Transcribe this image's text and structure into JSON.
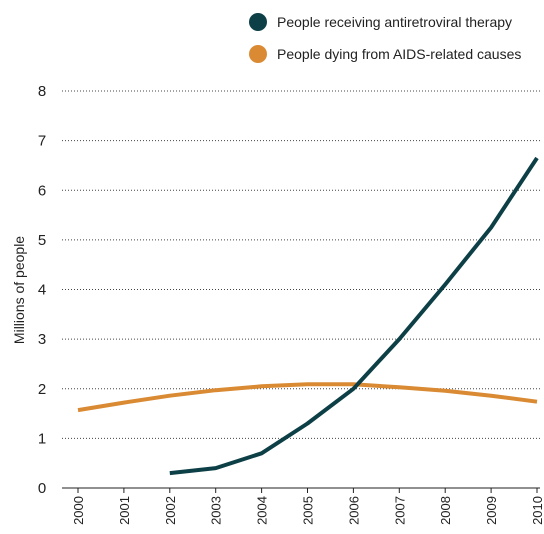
{
  "chart_data": {
    "type": "line",
    "title": "",
    "xlabel": "",
    "ylabel": "Millions of people",
    "x": [
      "2000",
      "2001",
      "2002",
      "2003",
      "2004",
      "2005",
      "2006",
      "2007",
      "2008",
      "2009",
      "2010"
    ],
    "yticks": [
      "0",
      "1",
      "2",
      "3",
      "4",
      "5",
      "6",
      "7",
      "8"
    ],
    "ylim": [
      0,
      8
    ],
    "grid": true,
    "legend_position": "top-right",
    "series": [
      {
        "name": "People receiving antiretroviral therapy",
        "color": "#0d3f47",
        "values": [
          null,
          null,
          0.3,
          0.4,
          0.7,
          1.3,
          2.0,
          3.0,
          4.1,
          5.25,
          6.65
        ]
      },
      {
        "name": "People dying from AIDS-related causes",
        "color": "#d98a33",
        "values": [
          1.57,
          1.72,
          1.86,
          1.97,
          2.05,
          2.09,
          2.09,
          2.03,
          1.96,
          1.86,
          1.74
        ]
      }
    ]
  }
}
